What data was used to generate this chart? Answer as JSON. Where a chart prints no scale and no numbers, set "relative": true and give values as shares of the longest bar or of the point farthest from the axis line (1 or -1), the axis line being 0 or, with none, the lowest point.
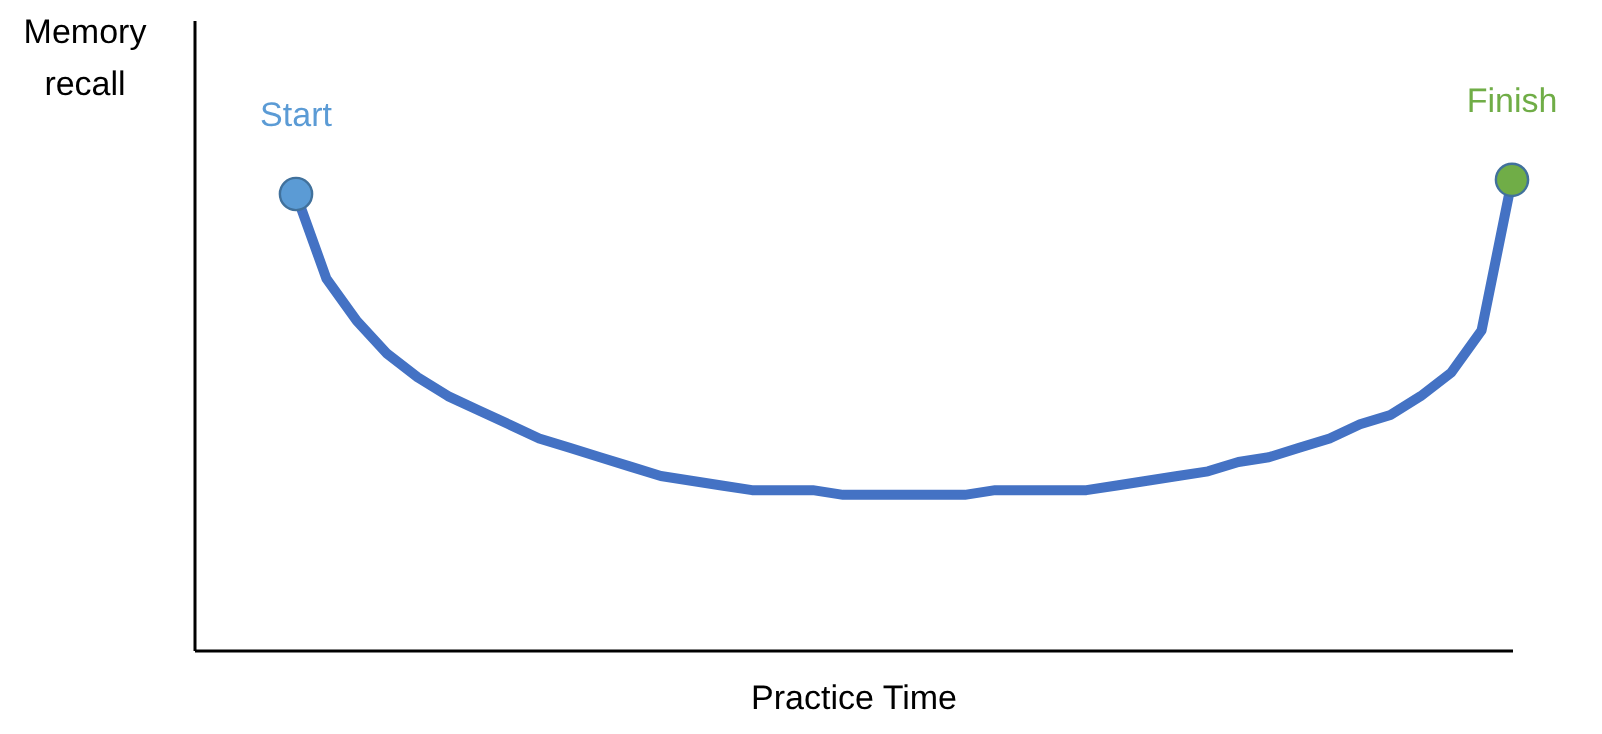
{
  "chart_data": {
    "type": "line",
    "relative": true,
    "xlabel": "Practice Time",
    "ylabel": "Memory recall",
    "grid": false,
    "categories": [
      null,
      null,
      null,
      null,
      null,
      null,
      null,
      null,
      null,
      null,
      null,
      null,
      null,
      null,
      null,
      null,
      null,
      null,
      null,
      null,
      null,
      null,
      null,
      null,
      null,
      null,
      null,
      null,
      null,
      null,
      null,
      null,
      null,
      null,
      null,
      null,
      null,
      null,
      null,
      null,
      null
    ],
    "series": [
      {
        "color": "#4472c4",
        "colors": [
          "#5b9bd5",
          null,
          null,
          null,
          null,
          null,
          null,
          null,
          null,
          null,
          null,
          null,
          null,
          null,
          null,
          null,
          null,
          null,
          null,
          null,
          null,
          null,
          null,
          null,
          null,
          null,
          null,
          null,
          null,
          null,
          null,
          null,
          null,
          null,
          null,
          null,
          null,
          null,
          null,
          null,
          "#70ad47"
        ],
        "values": [
          0.97,
          0.79,
          0.7,
          0.63,
          0.58,
          0.54,
          0.51,
          0.48,
          0.45,
          0.43,
          0.41,
          0.39,
          0.37,
          0.36,
          0.35,
          0.34,
          0.34,
          0.34,
          0.33,
          0.33,
          0.33,
          0.33,
          0.33,
          0.34,
          0.34,
          0.34,
          0.34,
          0.35,
          0.36,
          0.37,
          0.38,
          0.4,
          0.41,
          0.43,
          0.45,
          0.48,
          0.5,
          0.54,
          0.59,
          0.68,
          1.0
        ]
      }
    ],
    "annotations": [
      "Start",
      "Finish"
    ]
  }
}
